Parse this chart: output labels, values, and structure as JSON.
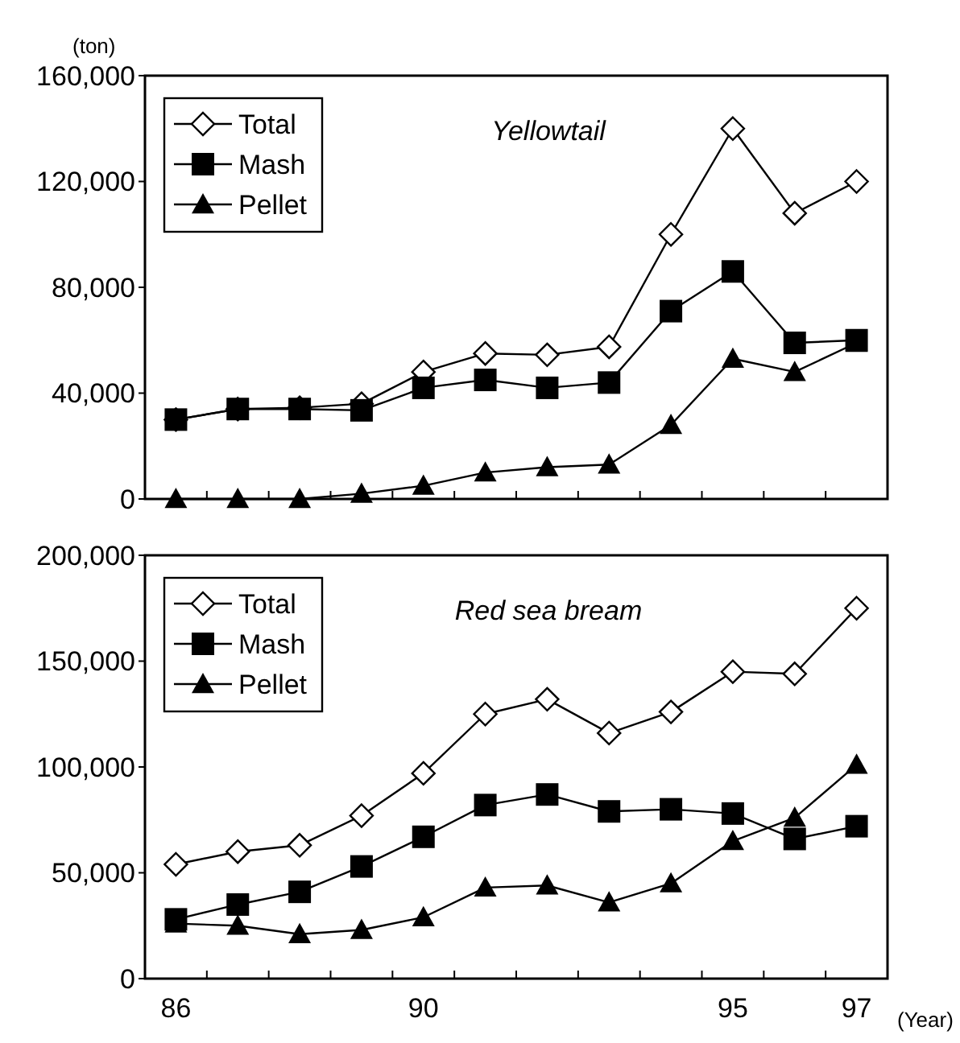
{
  "chart_data": [
    {
      "type": "line",
      "title": "Yellowtail",
      "ylabel": "(ton)",
      "categories": [
        null,
        null,
        null,
        null,
        null,
        null,
        null,
        null,
        null,
        null,
        null,
        null
      ],
      "tick_labels": "y",
      "ylim": [
        0,
        160000
      ],
      "yticks": [
        {
          "value": 0,
          "label": "0"
        },
        {
          "value": 40000,
          "label": "40,000"
        },
        {
          "value": 80000,
          "label": "80,000"
        },
        {
          "value": 120000,
          "label": "120,000"
        },
        {
          "value": 160000,
          "label": "160,000"
        }
      ],
      "grid": false,
      "legend": "top left",
      "series": [
        {
          "name": "Total",
          "color": "#000000",
          "marker": "diamond",
          "values": [
            30000,
            34000,
            34500,
            36000,
            48000,
            55000,
            54500,
            57500,
            100000,
            140000,
            108000,
            120000
          ]
        },
        {
          "name": "Mash",
          "color": "#000000",
          "marker": "square",
          "values": [
            30000,
            34000,
            34000,
            33500,
            42000,
            45000,
            42000,
            44000,
            71000,
            86000,
            59000,
            60000
          ]
        },
        {
          "name": "Pellet",
          "color": "#000000",
          "marker": "triangle",
          "values": [
            0,
            0,
            0,
            2000,
            5000,
            10000,
            12000,
            13000,
            28000,
            53000,
            48000,
            59000
          ]
        }
      ]
    },
    {
      "type": "line",
      "title": "Red sea bream",
      "xlabel": "(Year)",
      "categories": [
        "86",
        null,
        null,
        null,
        "90",
        null,
        null,
        null,
        null,
        "95",
        null,
        "97"
      ],
      "ylim": [
        0,
        200000
      ],
      "yticks": [
        {
          "value": 0,
          "label": "0"
        },
        {
          "value": 50000,
          "label": "50,000"
        },
        {
          "value": 100000,
          "label": "100,000"
        },
        {
          "value": 150000,
          "label": "150,000"
        },
        {
          "value": 200000,
          "label": "200,000"
        }
      ],
      "grid": false,
      "legend": "top left",
      "series": [
        {
          "name": "Total",
          "color": "#000000",
          "marker": "diamond",
          "values": [
            54000,
            60000,
            63000,
            77000,
            97000,
            125000,
            132000,
            116000,
            126000,
            145000,
            144000,
            175000
          ]
        },
        {
          "name": "Mash",
          "color": "#000000",
          "marker": "square",
          "values": [
            28000,
            35000,
            41000,
            53000,
            67000,
            82000,
            87000,
            79000,
            80000,
            78000,
            66000,
            72000
          ]
        },
        {
          "name": "Pellet",
          "color": "#000000",
          "marker": "triangle",
          "values": [
            26000,
            25000,
            21000,
            23000,
            29000,
            43000,
            44000,
            36000,
            45000,
            65000,
            76000,
            101000
          ]
        }
      ]
    }
  ]
}
